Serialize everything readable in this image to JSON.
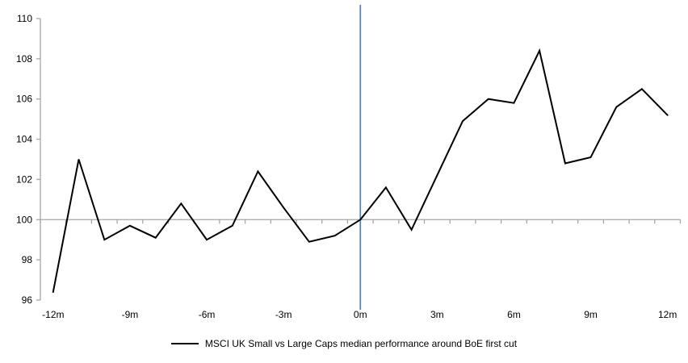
{
  "chart_data": {
    "type": "line",
    "title": "",
    "xlabel": "",
    "ylabel": "",
    "x": [
      -12,
      -11,
      -10,
      -9,
      -8,
      -7,
      -6,
      -5,
      -4,
      -3,
      -2,
      -1,
      0,
      1,
      2,
      3,
      4,
      5,
      6,
      7,
      8,
      9,
      10,
      11,
      12
    ],
    "series": [
      {
        "name": "MSCI UK Small vs Large Caps median performance around BoE first cut",
        "values": [
          96.4,
          103.0,
          99.0,
          99.7,
          99.1,
          100.8,
          99.0,
          99.7,
          102.4,
          100.6,
          98.9,
          99.2,
          100.0,
          101.6,
          99.5,
          102.2,
          104.9,
          106.0,
          105.8,
          108.4,
          102.8,
          103.1,
          105.6,
          106.5,
          105.2
        ]
      }
    ],
    "ylim": [
      96,
      110
    ],
    "y_ticks": [
      96,
      98,
      100,
      102,
      104,
      106,
      108,
      110
    ],
    "x_tick_months": [
      -12,
      -9,
      -6,
      -3,
      0,
      3,
      6,
      9,
      12
    ],
    "x_tick_labels": [
      "-12m",
      "-9m",
      "-6m",
      "-3m",
      "0m",
      "3m",
      "6m",
      "9m",
      "12m"
    ],
    "baseline_value": 100,
    "event_line_x": 0,
    "grid": "baseline-only",
    "legend_position": "bottom",
    "colors": {
      "series_line": "#000000",
      "event_line": "#4f81bd",
      "axis": "#a6a6a6",
      "text": "#000000",
      "background": "#ffffff"
    }
  },
  "legend": {
    "label": "MSCI UK Small vs Large Caps median performance around BoE first cut"
  }
}
